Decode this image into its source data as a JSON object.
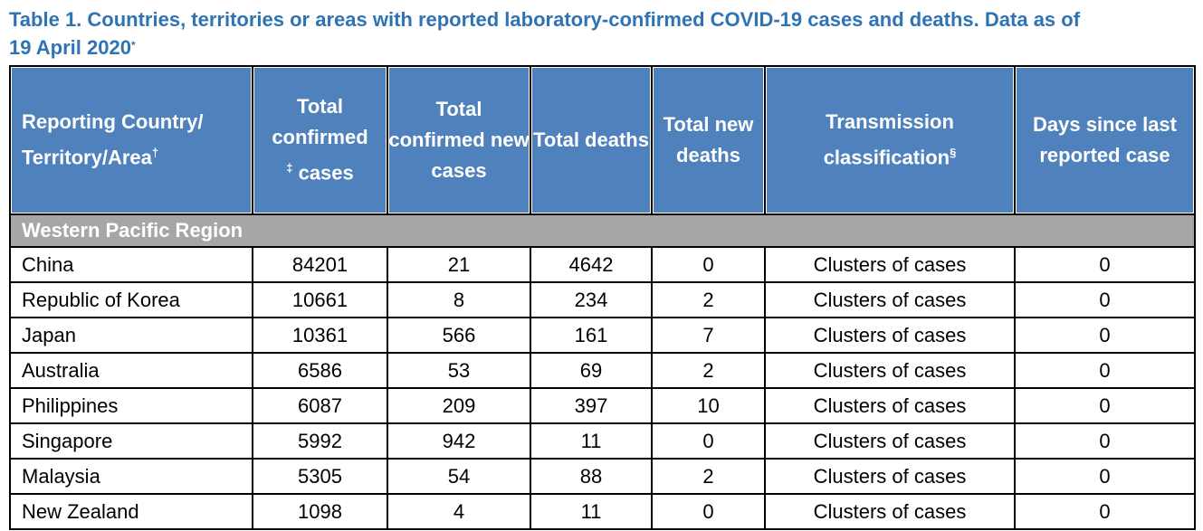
{
  "title": {
    "line1": "Table 1. Countries, territories or areas with reported laboratory-confirmed COVID-19 cases and deaths. Data as of",
    "line2": "19 April 2020",
    "mark": "*"
  },
  "headers": {
    "country": "Reporting Country/ Territory/Area",
    "country_mark": "†",
    "total_confirmed_a": "Total confirmed",
    "total_confirmed_mark": "‡",
    "total_confirmed_b": " cases",
    "new_cases": "Total confirmed new cases",
    "deaths": "Total deaths",
    "new_deaths": "Total new deaths",
    "transmission": "Transmission classification",
    "transmission_mark": "§",
    "days": "Days since last reported case"
  },
  "region": "Western Pacific Region",
  "rows": [
    {
      "country": "China",
      "confirmed": "84201",
      "new_cases": "21",
      "deaths": "4642",
      "new_deaths": "0",
      "transmission": "Clusters of cases",
      "days": "0"
    },
    {
      "country": "Republic of Korea",
      "confirmed": "10661",
      "new_cases": "8",
      "deaths": "234",
      "new_deaths": "2",
      "transmission": "Clusters of cases",
      "days": "0"
    },
    {
      "country": "Japan",
      "confirmed": "10361",
      "new_cases": "566",
      "deaths": "161",
      "new_deaths": "7",
      "transmission": "Clusters of cases",
      "days": "0"
    },
    {
      "country": "Australia",
      "confirmed": "6586",
      "new_cases": "53",
      "deaths": "69",
      "new_deaths": "2",
      "transmission": "Clusters of cases",
      "days": "0"
    },
    {
      "country": "Philippines",
      "confirmed": "6087",
      "new_cases": "209",
      "deaths": "397",
      "new_deaths": "10",
      "transmission": "Clusters of cases",
      "days": "0"
    },
    {
      "country": "Singapore",
      "confirmed": "5992",
      "new_cases": "942",
      "deaths": "11",
      "new_deaths": "0",
      "transmission": "Clusters of cases",
      "days": "0"
    },
    {
      "country": "Malaysia",
      "confirmed": "5305",
      "new_cases": "54",
      "deaths": "88",
      "new_deaths": "2",
      "transmission": "Clusters of cases",
      "days": "0"
    },
    {
      "country": "New Zealand",
      "confirmed": "1098",
      "new_cases": "4",
      "deaths": "11",
      "new_deaths": "0",
      "transmission": "Clusters of cases",
      "days": "0"
    }
  ]
}
